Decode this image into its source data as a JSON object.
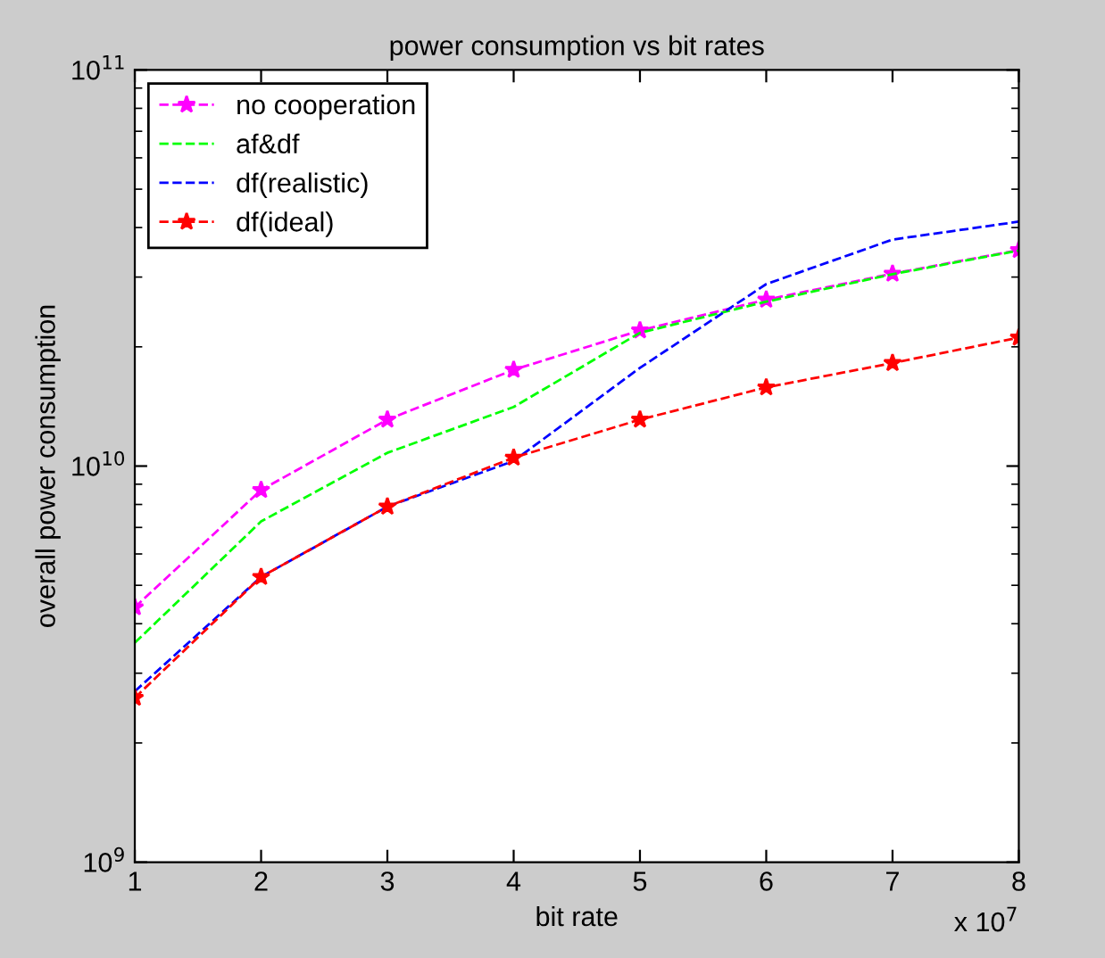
{
  "chart_data": {
    "type": "line",
    "title": "power consumption vs bit rates",
    "xlabel": "bit rate",
    "ylabel": "overall power consumption",
    "x": [
      1,
      2,
      3,
      4,
      5,
      6,
      7,
      8
    ],
    "series": [
      {
        "name": "no cooperation",
        "color": "#ff00ff",
        "marker": "star",
        "values": [
          4400000000.0,
          8700000000.0,
          13100000000.0,
          17500000000.0,
          22000000000.0,
          26300000000.0,
          30600000000.0,
          35100000000.0
        ]
      },
      {
        "name": "af&df",
        "color": "#00ff00",
        "marker": "none",
        "values": [
          3580000000.0,
          7250000000.0,
          10800000000.0,
          14100000000.0,
          21700000000.0,
          26000000000.0,
          30500000000.0,
          35000000000.0
        ]
      },
      {
        "name": "df(realistic)",
        "color": "#0000ff",
        "marker": "none",
        "values": [
          2700000000.0,
          5250000000.0,
          7900000000.0,
          10300000000.0,
          17700000000.0,
          28800000000.0,
          37300000000.0,
          41400000000.0
        ]
      },
      {
        "name": "df(ideal)",
        "color": "#ff0000",
        "marker": "star",
        "values": [
          2600000000.0,
          5250000000.0,
          7900000000.0,
          10500000000.0,
          13100000000.0,
          15800000000.0,
          18200000000.0,
          21100000000.0
        ]
      }
    ],
    "line_style": "dashed",
    "log": "y",
    "grid": false,
    "legend": "top left",
    "xlim": [
      1,
      8
    ],
    "xticks": [
      1,
      2,
      3,
      4,
      5,
      6,
      7,
      8
    ],
    "ylim": [
      1000000000.0,
      100000000000.0
    ],
    "yticks": [
      {
        "value": 1000000000.0,
        "label": "10$^{9}$"
      },
      {
        "value": 10000000000.0,
        "label": "10$^{10}$"
      },
      {
        "value": 100000000000.0,
        "label": "10$^{11}$"
      }
    ],
    "annotations": [
      "x 10$^{7}$"
    ]
  }
}
